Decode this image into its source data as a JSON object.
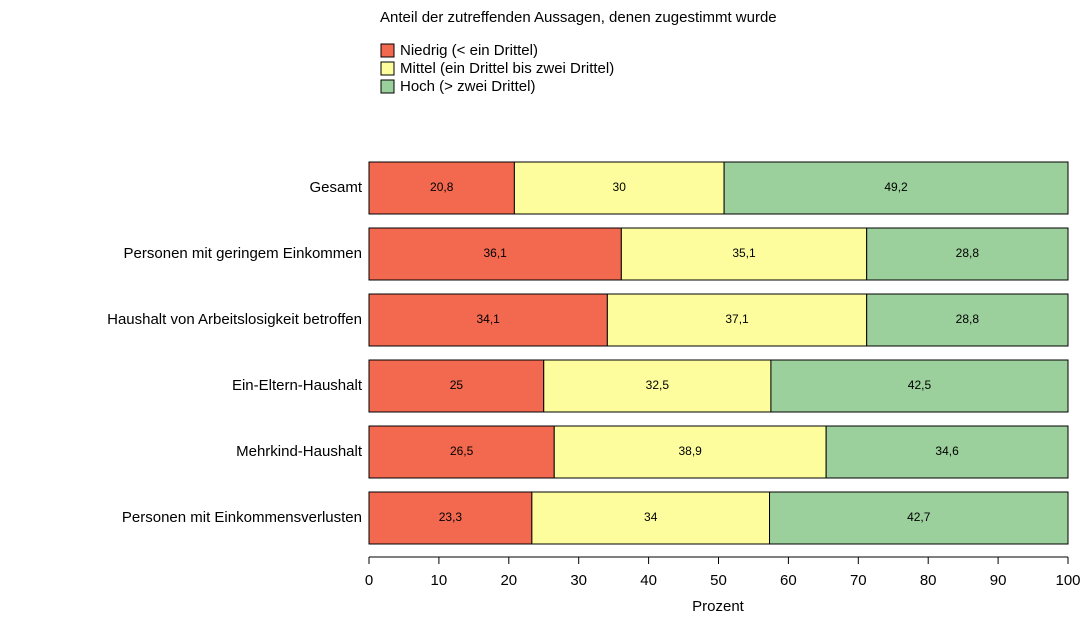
{
  "chart_data": {
    "type": "stacked_bar_horizontal",
    "legend_title": "Anteil der zutreffenden Aussagen, denen zugestimmt wurde",
    "categories": [
      "Gesamt",
      "Personen mit geringem Einkommen",
      "Haushalt von Arbeitslosigkeit betroffen",
      "Ein-Eltern-Haushalt",
      "Mehrkind-Haushalt",
      "Personen mit Einkommensverlusten"
    ],
    "series": [
      {
        "name": "Niedrig (< ein Drittel)",
        "color": "#f2694f",
        "values": [
          20.8,
          36.1,
          34.1,
          25,
          26.5,
          23.3
        ],
        "value_labels": [
          "20,8",
          "36,1",
          "34,1",
          "25",
          "26,5",
          "23,3"
        ]
      },
      {
        "name": "Mittel (ein Drittel bis zwei Drittel)",
        "color": "#fdfd9d",
        "values": [
          30,
          35.1,
          37.1,
          32.5,
          38.9,
          34
        ],
        "value_labels": [
          "30",
          "35,1",
          "37,1",
          "32,5",
          "38,9",
          "34"
        ]
      },
      {
        "name": "Hoch (> zwei Drittel)",
        "color": "#9bcf9b",
        "values": [
          49.2,
          28.8,
          28.8,
          42.5,
          34.6,
          42.7
        ],
        "value_labels": [
          "49,2",
          "28,8",
          "28,8",
          "42,5",
          "34,6",
          "42,7"
        ]
      }
    ],
    "x_label": "Prozent",
    "xlim": [
      0,
      100
    ],
    "xticks": [
      0,
      10,
      20,
      30,
      40,
      50,
      60,
      70,
      80,
      90,
      100
    ],
    "legend": "top"
  }
}
